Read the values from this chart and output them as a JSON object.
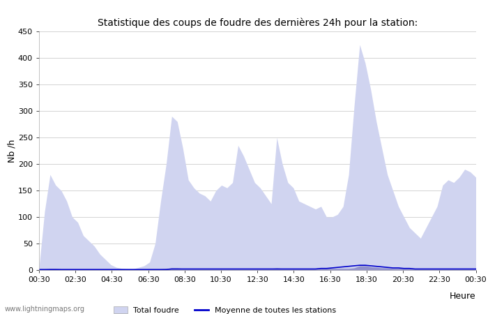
{
  "title": "Statistique des coups de foudre des dernières 24h pour la station:",
  "xlabel": "Heure",
  "ylabel": "Nb /h",
  "ylim": [
    0,
    450
  ],
  "yticks": [
    0,
    50,
    100,
    150,
    200,
    250,
    300,
    350,
    400,
    450
  ],
  "x_labels": [
    "00:30",
    "02:30",
    "04:30",
    "06:30",
    "08:30",
    "10:30",
    "12:30",
    "14:30",
    "16:30",
    "18:30",
    "20:30",
    "22:30",
    "00:30"
  ],
  "bg_color": "#ffffff",
  "grid_color": "#cccccc",
  "fill_color_light": "#d0d4f0",
  "fill_color_dark": "#9090cc",
  "line_color": "#0000cc",
  "watermark": "www.lightningmaps.org",
  "total_foudre_values": [
    5,
    110,
    180,
    160,
    150,
    130,
    100,
    90,
    65,
    55,
    45,
    30,
    20,
    10,
    5,
    3,
    2,
    2,
    5,
    8,
    15,
    50,
    130,
    200,
    290,
    280,
    230,
    170,
    155,
    145,
    140,
    130,
    150,
    160,
    155,
    165,
    235,
    215,
    190,
    165,
    155,
    140,
    125,
    250,
    200,
    165,
    155,
    130,
    125,
    120,
    115,
    120,
    100,
    100,
    105,
    120,
    180,
    310,
    425,
    390,
    340,
    280,
    230,
    180,
    150,
    120,
    100,
    80,
    70,
    60,
    80,
    100,
    120,
    160,
    170,
    165,
    175,
    190,
    185,
    175
  ],
  "detected_values": [
    1,
    2,
    3,
    3,
    2,
    2,
    2,
    2,
    2,
    2,
    1,
    1,
    1,
    1,
    1,
    1,
    1,
    1,
    1,
    1,
    1,
    1,
    2,
    3,
    4,
    4,
    3,
    3,
    3,
    3,
    3,
    3,
    3,
    3,
    3,
    3,
    3,
    3,
    3,
    3,
    3,
    3,
    3,
    4,
    3,
    3,
    3,
    3,
    3,
    3,
    3,
    3,
    3,
    3,
    3,
    3,
    3,
    4,
    8,
    8,
    6,
    5,
    4,
    4,
    3,
    3,
    3,
    3,
    3,
    3,
    3,
    3,
    3,
    3,
    3,
    3,
    3,
    3,
    3,
    3
  ],
  "avg_line_values": [
    1,
    1,
    1,
    1,
    1,
    1,
    1,
    1,
    1,
    1,
    1,
    1,
    1,
    1,
    1,
    1,
    1,
    1,
    1,
    1,
    1,
    1,
    1,
    1,
    2,
    2,
    2,
    2,
    2,
    2,
    2,
    2,
    2,
    2,
    2,
    2,
    2,
    2,
    2,
    2,
    2,
    2,
    2,
    2,
    2,
    2,
    2,
    2,
    2,
    2,
    2,
    3,
    3,
    4,
    5,
    6,
    7,
    8,
    9,
    9,
    8,
    7,
    6,
    5,
    4,
    4,
    3,
    3,
    2,
    2,
    2,
    2,
    2,
    2,
    2,
    2,
    2,
    2,
    2,
    2
  ]
}
